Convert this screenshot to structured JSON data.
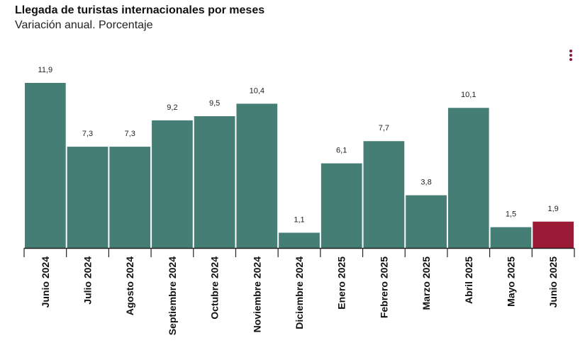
{
  "header": {
    "title": "Llegada de turistas internacionales por meses",
    "subtitle": "Variación anual. Porcentaje"
  },
  "menu": {
    "icon": "vertical-dots-menu-icon",
    "color": "#8a1a3b"
  },
  "colors": {
    "bar": "#457e75",
    "highlight": "#9b1b36",
    "axis": "#222222"
  },
  "chart_data": {
    "type": "bar",
    "title": "Llegada de turistas internacionales por meses",
    "subtitle": "Variación anual. Porcentaje",
    "categories": [
      "Junio 2024",
      "Julio 2024",
      "Agosto 2024",
      "Septiembre 2024",
      "Octubre 2024",
      "Noviembre 2024",
      "Diciembre 2024",
      "Enero 2025",
      "Febrero 2025",
      "Marzo 2025",
      "Abril 2025",
      "Mayo 2025",
      "Junio 2025"
    ],
    "values": [
      11.9,
      7.3,
      7.3,
      9.2,
      9.5,
      10.4,
      1.1,
      6.1,
      7.7,
      3.8,
      10.1,
      1.5,
      1.9
    ],
    "value_labels": [
      "11,9",
      "7,3",
      "7,3",
      "9,2",
      "9,5",
      "10,4",
      "1,1",
      "6,1",
      "7,7",
      "3,8",
      "10,1",
      "1,5",
      "1,9"
    ],
    "highlight_index": 12,
    "ylim": [
      0,
      11.9
    ],
    "grid": false,
    "legend": "none"
  }
}
